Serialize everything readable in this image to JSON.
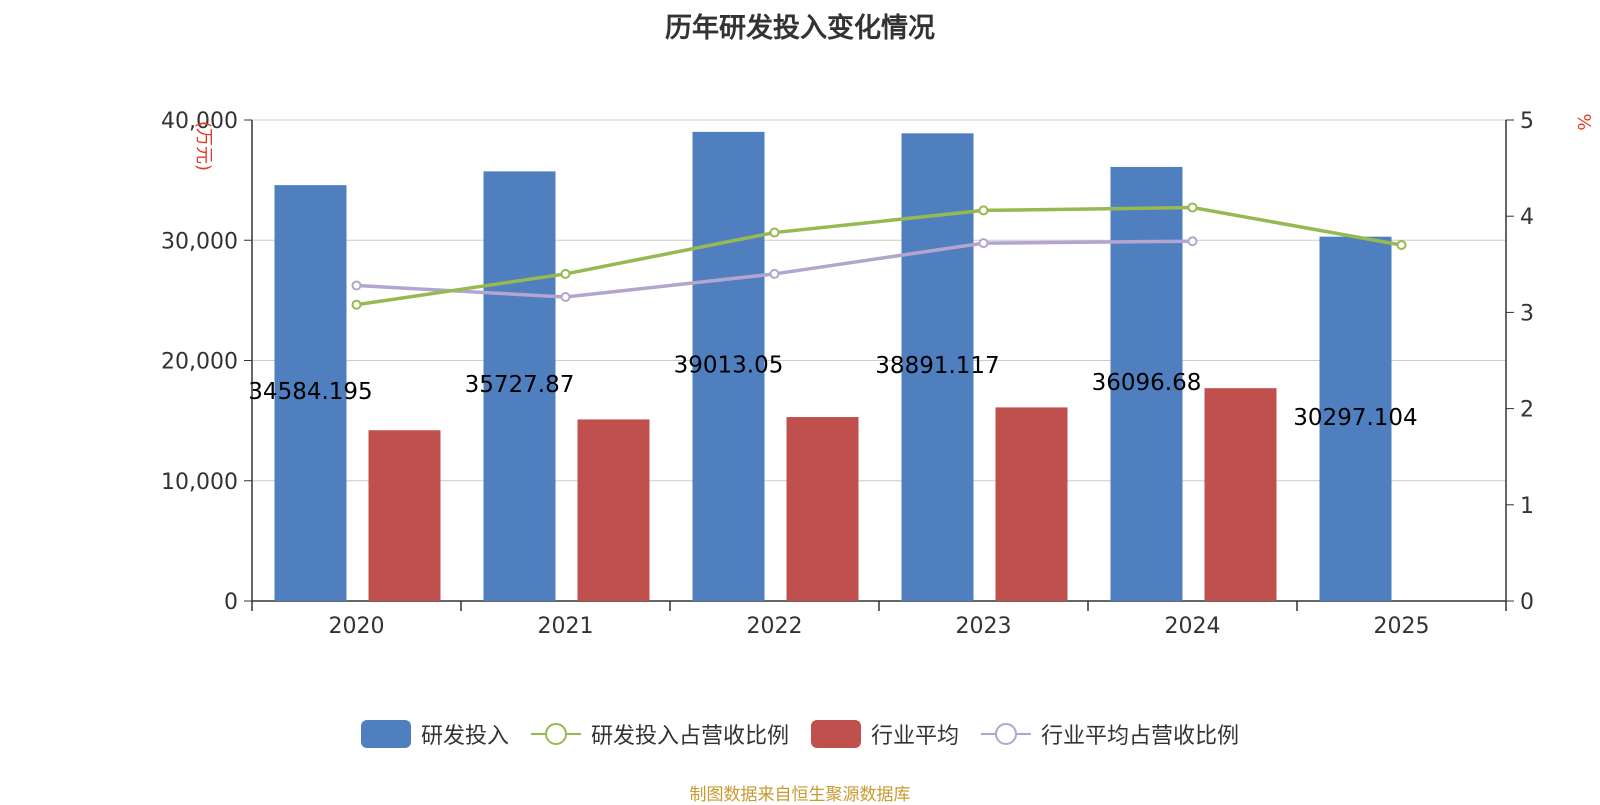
{
  "colors": {
    "rd": "#4f7fbe",
    "rd_ratio": "#96b951",
    "industry": "#c0504d",
    "industry_ratio": "#b3a5cf",
    "unit_text": "#e23b2b",
    "source_text": "#c99a2e",
    "axis": "#333333",
    "grid": "#cccccc"
  },
  "chart_data": {
    "type": "bar",
    "title": "历年研发投入变化情况",
    "categories": [
      "2020",
      "2021",
      "2022",
      "2023",
      "2024",
      "2025"
    ],
    "y_left": {
      "unit": "(万元)",
      "range": [
        0,
        40000
      ],
      "ticks": [
        "0",
        "10,000",
        "20,000",
        "30,000",
        "40,000"
      ],
      "tick_values": [
        0,
        10000,
        20000,
        30000,
        40000
      ]
    },
    "y_right": {
      "unit": "%",
      "range": [
        0,
        5
      ],
      "ticks": [
        "0",
        "1",
        "2",
        "3",
        "4",
        "5"
      ],
      "tick_values": [
        0,
        1,
        2,
        3,
        4,
        5
      ]
    },
    "series": [
      {
        "name": "研发投入",
        "kind": "bar",
        "axis": "left",
        "values": [
          34584.195,
          35727.87,
          39013.05,
          38891.117,
          36096.68,
          30297.104
        ],
        "labels": [
          "34584.195",
          "35727.87",
          "39013.05",
          "38891.117",
          "36096.68",
          "30297.104"
        ]
      },
      {
        "name": "研发投入占营收比例",
        "kind": "line",
        "axis": "right",
        "values": [
          3.08,
          3.4,
          3.83,
          4.06,
          4.09,
          3.7
        ]
      },
      {
        "name": "行业平均",
        "kind": "bar",
        "axis": "left",
        "values": [
          14200,
          15100,
          15300,
          16100,
          17700,
          null
        ]
      },
      {
        "name": "行业平均占营收比例",
        "kind": "line",
        "axis": "right",
        "values": [
          3.28,
          3.16,
          3.4,
          3.72,
          3.74,
          null
        ]
      }
    ],
    "grid": true,
    "legend_position": "bottom-center"
  },
  "legend": [
    {
      "label": "研发投入",
      "type": "bar",
      "color_key": "rd"
    },
    {
      "label": "研发投入占营收比例",
      "type": "line",
      "color_key": "rd_ratio"
    },
    {
      "label": "行业平均",
      "type": "bar",
      "color_key": "industry"
    },
    {
      "label": "行业平均占营收比例",
      "type": "line",
      "color_key": "industry_ratio"
    }
  ],
  "source": "制图数据来自恒生聚源数据库"
}
